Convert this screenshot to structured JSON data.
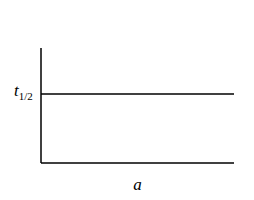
{
  "chart_data": {
    "type": "line",
    "x_label": "a",
    "y_label": "t1/2",
    "x": [
      0,
      1
    ],
    "series": [
      {
        "values": [
          0.6,
          0.6
        ],
        "color": "#000000"
      }
    ],
    "xlim": [
      0,
      1
    ],
    "ylim": [
      0,
      1
    ],
    "tick_labels": false
  }
}
